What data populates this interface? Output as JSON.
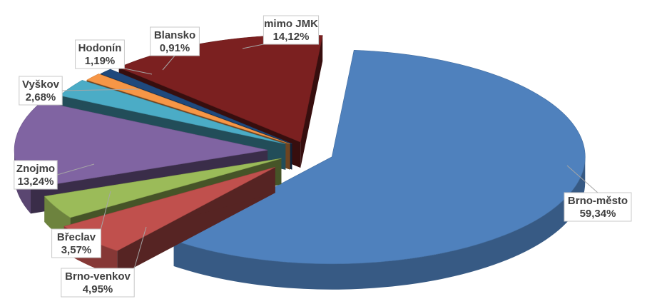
{
  "chart_data": {
    "type": "pie",
    "style": "3d-exploded",
    "title": "",
    "slices": [
      {
        "label": "Brno-město",
        "value": 59.34,
        "display": "59,34%",
        "color": "#4f81bd"
      },
      {
        "label": "Brno-venkov",
        "value": 4.95,
        "display": "4,95%",
        "color": "#c0504d"
      },
      {
        "label": "Břeclav",
        "value": 3.57,
        "display": "3,57%",
        "color": "#9bbb59"
      },
      {
        "label": "Znojmo",
        "value": 13.24,
        "display": "13,24%",
        "color": "#8064a2"
      },
      {
        "label": "Vyškov",
        "value": 2.68,
        "display": "2,68%",
        "color": "#4bacc6"
      },
      {
        "label": "Hodonín",
        "value": 1.19,
        "display": "1,19%",
        "color": "#f79646"
      },
      {
        "label": "Blansko",
        "value": 0.91,
        "display": "0,91%",
        "color": "#1f497d"
      },
      {
        "label": "mimo JMK",
        "value": 14.12,
        "display": "14,12%",
        "color": "#7b2020"
      }
    ],
    "legend": "none",
    "data_labels": "category name and percentage, callouts"
  }
}
